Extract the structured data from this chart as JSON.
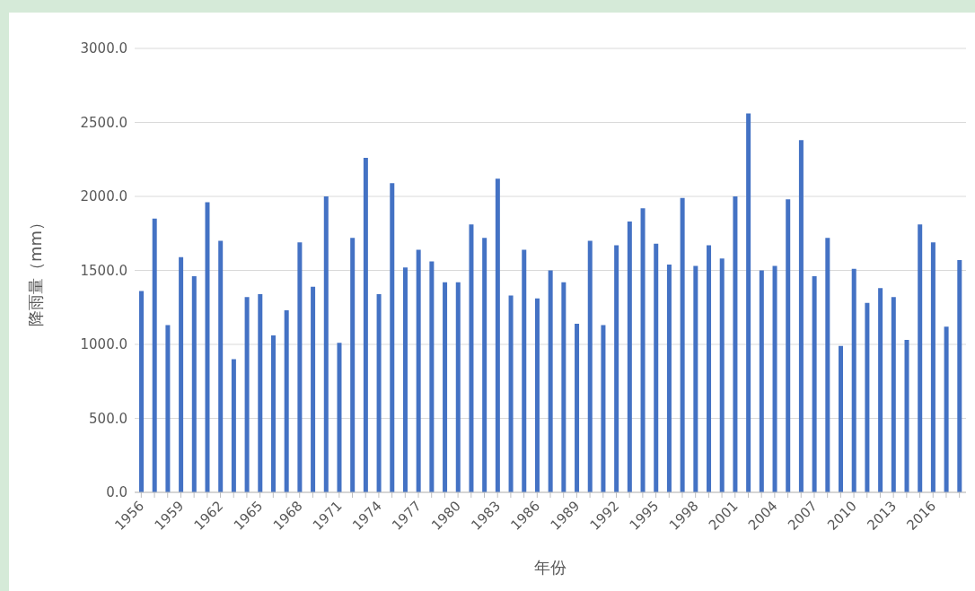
{
  "chart_data": {
    "type": "bar",
    "xlabel": "年份",
    "ylabel": "降雨量（mm）",
    "categories": [
      "1956",
      null,
      null,
      "1959",
      null,
      null,
      "1962",
      null,
      null,
      "1965",
      null,
      null,
      "1968",
      null,
      null,
      "1971",
      null,
      null,
      "1974",
      null,
      null,
      "1977",
      null,
      null,
      "1980",
      null,
      null,
      "1983",
      null,
      null,
      "1986",
      null,
      null,
      "1989",
      null,
      null,
      "1992",
      null,
      null,
      "1995",
      null,
      null,
      "1998",
      null,
      null,
      "2001",
      null,
      null,
      "2004",
      null,
      null,
      "2007",
      null,
      null,
      "2010",
      null,
      null,
      "2013",
      null,
      null,
      "2016",
      null,
      null
    ],
    "values": [
      1360,
      1850,
      1130,
      1590,
      1460,
      1960,
      1700,
      900,
      1320,
      1340,
      1060,
      1230,
      1690,
      1390,
      2000,
      1010,
      1720,
      2260,
      1340,
      2090,
      1520,
      1640,
      1560,
      1420,
      1420,
      1810,
      1720,
      2120,
      1330,
      1640,
      1310,
      1500,
      1420,
      1140,
      1700,
      1130,
      1670,
      1830,
      1920,
      1680,
      1540,
      1990,
      1530,
      1670,
      1580,
      2000,
      2560,
      1500,
      1530,
      1980,
      2380,
      1460,
      1720,
      990,
      1510,
      1280,
      1380,
      1320,
      1030,
      1810,
      1690,
      1120,
      1570
    ],
    "color": "#4472c4",
    "ylim": [
      0,
      3000
    ],
    "yticks": [
      {
        "value": 0,
        "label": "0.0"
      },
      {
        "value": 500,
        "label": "500.0"
      },
      {
        "value": 1000,
        "label": "1000.0"
      },
      {
        "value": 1500,
        "label": "1500.0"
      },
      {
        "value": 2000,
        "label": "2000.0"
      },
      {
        "value": 2500,
        "label": "2500.0"
      },
      {
        "value": 3000,
        "label": "3000.0"
      }
    ],
    "grid": "y"
  }
}
